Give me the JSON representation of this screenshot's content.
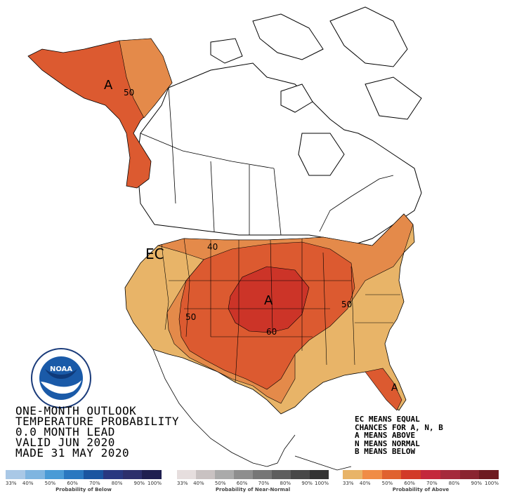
{
  "title_lines": [
    "ONE-MONTH OUTLOOK",
    "TEMPERATURE PROBABILITY",
    "0.0 MONTH LEAD",
    "VALID JUN 2020",
    "MADE 31 MAY 2020"
  ],
  "legend_notes": [
    "EC MEANS EQUAL",
    "CHANCES FOR A, N, B",
    "A MEANS ABOVE",
    "N MEANS NORMAL",
    "B MEANS BELOW"
  ],
  "map_labels": {
    "alaska_a": "A",
    "alaska_50": "50",
    "ec": "EC",
    "contour_40": "40",
    "contour_50": "50",
    "contour_50_east": "50",
    "contour_60": "60",
    "center_a": "A",
    "florida_a": "A"
  },
  "logo_text": "NOAA",
  "scales": [
    {
      "caption": "Probability of Below",
      "ticks": [
        "33%",
        "40%",
        "50%",
        "60%",
        "70%",
        "80%",
        "90%",
        "100%"
      ],
      "colors": [
        "#a9c8e6",
        "#7fb5e0",
        "#4a9bd6",
        "#2a78c0",
        "#1a55a0",
        "#283880",
        "#2c2f6c",
        "#1f1f50"
      ]
    },
    {
      "caption": "Probability of Near-Normal",
      "ticks": [
        "33%",
        "40%",
        "50%",
        "60%",
        "70%",
        "80%",
        "90%",
        "100%"
      ],
      "colors": [
        "#e6dede",
        "#c9c2c2",
        "#aaaaaa",
        "#8e8e8e",
        "#767676",
        "#5e5e5e",
        "#484848",
        "#333333"
      ]
    },
    {
      "caption": "Probability of Above",
      "ticks": [
        "33%",
        "40%",
        "50%",
        "60%",
        "70%",
        "80%",
        "90%",
        "100%"
      ],
      "colors": [
        "#e8b468",
        "#f08c46",
        "#e0622e",
        "#d23a28",
        "#c4283c",
        "#a52a3c",
        "#8a2430",
        "#6e1a20"
      ]
    }
  ],
  "colors": {
    "above_33_40": "#e8b468",
    "above_40_50": "#e48a4a",
    "above_50_60": "#dc5a30",
    "above_60_70": "#cc3428"
  }
}
